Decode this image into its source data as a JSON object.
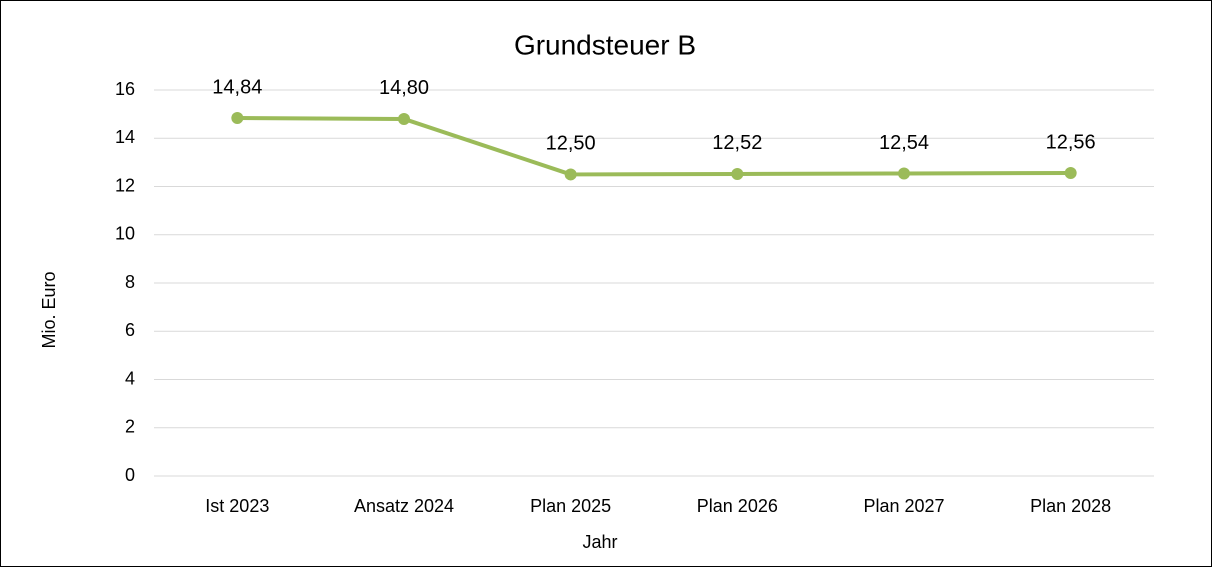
{
  "chart_data": {
    "type": "line",
    "title": "Grundsteuer B",
    "x_label": "Jahr",
    "y_label": "Mio. Euro",
    "categories": [
      "Ist 2023",
      "Ansatz 2024",
      "Plan 2025",
      "Plan 2026",
      "Plan 2027",
      "Plan 2028"
    ],
    "values": [
      14.84,
      14.8,
      12.5,
      12.52,
      12.54,
      12.56
    ],
    "value_labels": [
      "14,84",
      "14,80",
      "12,50",
      "12,52",
      "12,54",
      "12,56"
    ],
    "color": "#9bbb59",
    "ylim": [
      0,
      16
    ],
    "yticks": [
      0,
      2,
      4,
      6,
      8,
      10,
      12,
      14,
      16
    ],
    "grid": true
  }
}
